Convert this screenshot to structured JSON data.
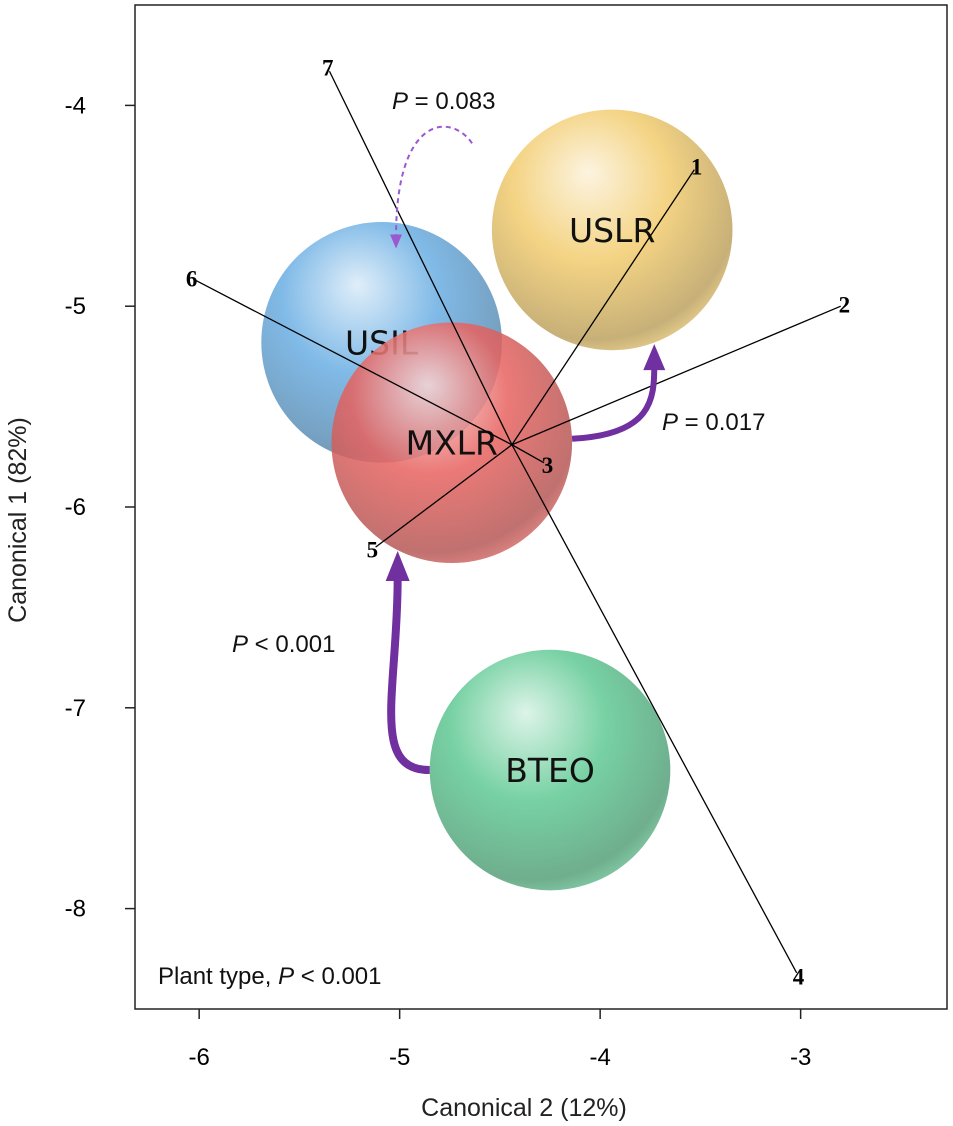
{
  "chart_data": {
    "type": "scatter",
    "subtype": "canonical biplot",
    "xlabel": "Canonical 2 (12%)",
    "ylabel": "Canonical 1 (82%)",
    "xlim": [
      -6.32,
      -2.27
    ],
    "ylim": [
      -8.5,
      -3.5
    ],
    "x_ticks": [
      -6,
      -5,
      -4,
      -3
    ],
    "y_ticks": [
      -4,
      -5,
      -6,
      -7,
      -8
    ],
    "x_tick_labels": [
      "-6",
      "-5",
      "-4",
      "-3"
    ],
    "y_tick_labels": [
      "-4",
      "-5",
      "-6",
      "-7",
      "-8"
    ],
    "grid": false,
    "annotation": {
      "prefix": "Plant type, ",
      "p": "P",
      "rest": " < 0.001"
    },
    "groups": [
      {
        "name": "USIL",
        "x": -5.09,
        "y": -5.18,
        "radius": 0.6,
        "color": "#6aaee3"
      },
      {
        "name": "USLR",
        "x": -3.94,
        "y": -4.62,
        "radius": 0.6,
        "color": "#f2cc6e"
      },
      {
        "name": "MXLR",
        "x": -4.74,
        "y": -5.68,
        "radius": 0.6,
        "color": "#e7625f"
      },
      {
        "name": "BTEO",
        "x": -4.25,
        "y": -7.31,
        "radius": 0.6,
        "color": "#5fc993"
      }
    ],
    "vector_origin": {
      "x": -4.44,
      "y": -5.69
    },
    "vectors": [
      {
        "label": "1",
        "x": -3.53,
        "y": -4.32
      },
      {
        "label": "2",
        "x": -2.8,
        "y": -5.0
      },
      {
        "label": "3",
        "x": -4.28,
        "y": -5.78
      },
      {
        "label": "4",
        "x": -3.02,
        "y": -8.32
      },
      {
        "label": "5",
        "x": -5.12,
        "y": -6.2
      },
      {
        "label": "6",
        "x": -6.02,
        "y": -4.87
      },
      {
        "label": "7",
        "x": -5.35,
        "y": -3.83
      }
    ],
    "arrows": [
      {
        "from": "BTEO",
        "to": "MXLR",
        "p": "P",
        "rest": " < 0.001",
        "style": "solid",
        "color": "#7030a0"
      },
      {
        "from": "MXLR",
        "to": "USLR",
        "p": "P",
        "rest": " = 0.017",
        "style": "solid",
        "color": "#7030a0"
      },
      {
        "from": "USLR",
        "to": "USIL",
        "p": "P",
        "rest": " = 0.083",
        "style": "dashed",
        "color": "#9b59d0"
      }
    ]
  }
}
